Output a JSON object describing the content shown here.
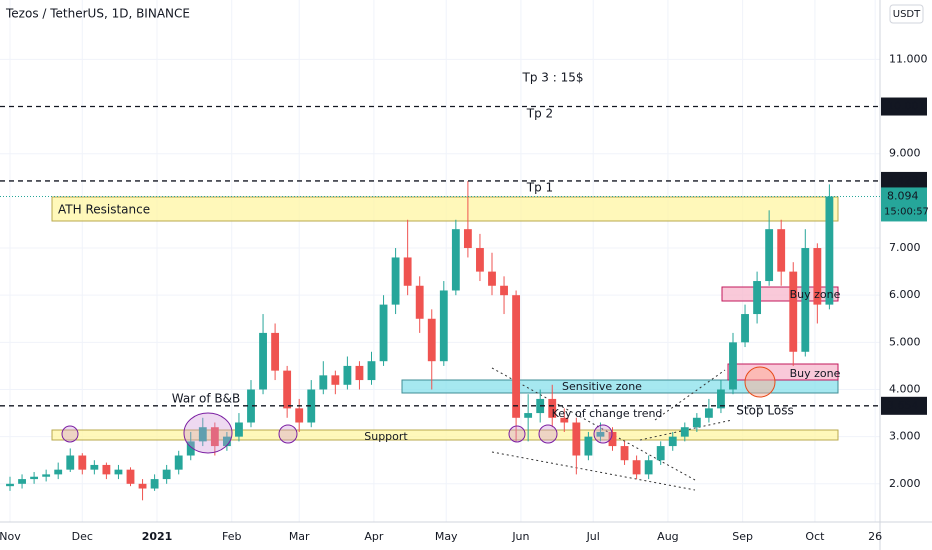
{
  "chart_data": {
    "type": "candlestick",
    "title": "Tezos / TetherUS, 1D, BINANCE",
    "unit": "USDT",
    "up_color": "#26a69a",
    "down_color": "#ef5350",
    "x": [
      0,
      5,
      10,
      15,
      20,
      25,
      30,
      35,
      40,
      45,
      50,
      55,
      60,
      65,
      70,
      75,
      80,
      85,
      90,
      95,
      100,
      105,
      110,
      115,
      120,
      125,
      130,
      135,
      140,
      145,
      150,
      155,
      160,
      165,
      170,
      175,
      180,
      185,
      190,
      195,
      200,
      205,
      210,
      215,
      220,
      225,
      230,
      235,
      240,
      245,
      250,
      255,
      260,
      265,
      270,
      275,
      280,
      285,
      290,
      295,
      300,
      305,
      310,
      315,
      320,
      325,
      330,
      335,
      340
    ],
    "candles": [
      [
        1.95,
        2.15,
        1.85,
        2.0
      ],
      [
        2.0,
        2.2,
        1.9,
        2.1
      ],
      [
        2.1,
        2.25,
        2.0,
        2.15
      ],
      [
        2.15,
        2.3,
        2.05,
        2.2
      ],
      [
        2.2,
        2.45,
        2.1,
        2.3
      ],
      [
        2.3,
        2.75,
        2.25,
        2.6
      ],
      [
        2.6,
        2.65,
        2.2,
        2.3
      ],
      [
        2.3,
        2.5,
        2.2,
        2.4
      ],
      [
        2.4,
        2.45,
        2.1,
        2.2
      ],
      [
        2.2,
        2.4,
        2.1,
        2.3
      ],
      [
        2.3,
        2.35,
        1.95,
        2.0
      ],
      [
        2.0,
        2.1,
        1.65,
        1.9
      ],
      [
        1.9,
        2.2,
        1.85,
        2.1
      ],
      [
        2.1,
        2.4,
        2.0,
        2.3
      ],
      [
        2.3,
        2.7,
        2.2,
        2.6
      ],
      [
        2.6,
        3.1,
        2.5,
        2.9
      ],
      [
        2.9,
        3.4,
        2.8,
        3.2
      ],
      [
        3.2,
        3.3,
        2.6,
        2.8
      ],
      [
        2.8,
        3.1,
        2.7,
        3.0
      ],
      [
        3.0,
        3.5,
        2.9,
        3.3
      ],
      [
        3.3,
        4.2,
        3.2,
        4.0
      ],
      [
        4.0,
        5.6,
        3.9,
        5.2
      ],
      [
        5.2,
        5.4,
        4.2,
        4.4
      ],
      [
        4.4,
        4.5,
        3.4,
        3.6
      ],
      [
        3.6,
        3.8,
        3.1,
        3.3
      ],
      [
        3.3,
        4.2,
        3.2,
        4.0
      ],
      [
        4.0,
        4.6,
        3.9,
        4.3
      ],
      [
        4.3,
        4.4,
        3.9,
        4.1
      ],
      [
        4.1,
        4.7,
        4.0,
        4.5
      ],
      [
        4.5,
        4.6,
        4.0,
        4.2
      ],
      [
        4.2,
        4.8,
        4.1,
        4.6
      ],
      [
        4.6,
        6.0,
        4.5,
        5.8
      ],
      [
        5.8,
        7.0,
        5.6,
        6.8
      ],
      [
        6.8,
        7.6,
        6.0,
        6.2
      ],
      [
        6.2,
        6.4,
        5.2,
        5.5
      ],
      [
        5.5,
        5.7,
        4.0,
        4.6
      ],
      [
        4.6,
        6.3,
        4.5,
        6.1
      ],
      [
        6.1,
        7.6,
        6.0,
        7.4
      ],
      [
        7.4,
        8.42,
        6.8,
        7.0
      ],
      [
        7.0,
        7.3,
        6.3,
        6.5
      ],
      [
        6.5,
        6.9,
        6.0,
        6.2
      ],
      [
        6.2,
        6.4,
        5.6,
        6.0
      ],
      [
        6.0,
        6.1,
        2.9,
        3.4
      ],
      [
        3.4,
        3.9,
        2.9,
        3.5
      ],
      [
        3.5,
        4.0,
        3.3,
        3.8
      ],
      [
        3.8,
        4.1,
        3.2,
        3.4
      ],
      [
        3.4,
        3.6,
        3.1,
        3.3
      ],
      [
        3.3,
        3.4,
        2.2,
        2.6
      ],
      [
        2.6,
        3.1,
        2.5,
        3.0
      ],
      [
        3.0,
        3.3,
        2.9,
        3.1
      ],
      [
        3.1,
        3.2,
        2.7,
        2.8
      ],
      [
        2.8,
        2.9,
        2.4,
        2.5
      ],
      [
        2.5,
        2.6,
        2.1,
        2.2
      ],
      [
        2.2,
        2.6,
        2.1,
        2.5
      ],
      [
        2.5,
        2.9,
        2.4,
        2.8
      ],
      [
        2.8,
        3.1,
        2.7,
        3.0
      ],
      [
        3.0,
        3.3,
        2.9,
        3.2
      ],
      [
        3.2,
        3.5,
        3.1,
        3.4
      ],
      [
        3.4,
        3.8,
        3.3,
        3.6
      ],
      [
        3.6,
        4.2,
        3.5,
        4.0
      ],
      [
        4.0,
        5.2,
        3.9,
        5.0
      ],
      [
        5.0,
        5.8,
        4.9,
        5.6
      ],
      [
        5.6,
        6.5,
        5.4,
        6.3
      ],
      [
        6.3,
        7.8,
        6.2,
        7.4
      ],
      [
        7.4,
        7.6,
        6.2,
        6.5
      ],
      [
        6.5,
        6.7,
        4.5,
        4.8
      ],
      [
        4.8,
        7.4,
        4.7,
        7.0
      ],
      [
        7.0,
        7.1,
        5.4,
        5.8
      ],
      [
        5.8,
        8.35,
        5.7,
        8.094
      ]
    ],
    "xlim": [
      -4.15,
      361
    ],
    "xticks": [
      {
        "value": 0,
        "label": "Nov"
      },
      {
        "value": 30,
        "label": "Dec"
      },
      {
        "value": 61,
        "label": "2021"
      },
      {
        "value": 92,
        "label": "Feb"
      },
      {
        "value": 120,
        "label": "Mar"
      },
      {
        "value": 151,
        "label": "Apr"
      },
      {
        "value": 181,
        "label": "May"
      },
      {
        "value": 212,
        "label": "Jun"
      },
      {
        "value": 242,
        "label": "Jul"
      },
      {
        "value": 273,
        "label": "Aug"
      },
      {
        "value": 304,
        "label": "Sep"
      },
      {
        "value": 334,
        "label": "Oct"
      },
      {
        "value": 359,
        "label": "26"
      }
    ],
    "ylim": [
      1.19,
      12.26
    ],
    "yticks": [
      {
        "value": 2,
        "label": "2.000"
      },
      {
        "value": 3,
        "label": "3.000"
      },
      {
        "value": 4,
        "label": "4.000"
      },
      {
        "value": 5,
        "label": "5.000"
      },
      {
        "value": 6,
        "label": "6.000"
      },
      {
        "value": 7,
        "label": "7.000"
      },
      {
        "value": 9,
        "label": "9.000"
      },
      {
        "value": 11,
        "label": "11.000"
      }
    ],
    "levels": [
      10.001,
      8.423,
      3.654
    ],
    "last_price": 8.094,
    "countdown": "15:00:57",
    "annotations": [
      "Tp 3 : 15$",
      "Tp 2",
      "Tp 1",
      "ATH Resistance",
      "Buy zone",
      "Buy zone",
      "Sensitive zone",
      "Stop Loss",
      "War of B&B",
      "Key of change trend",
      "Support"
    ]
  }
}
